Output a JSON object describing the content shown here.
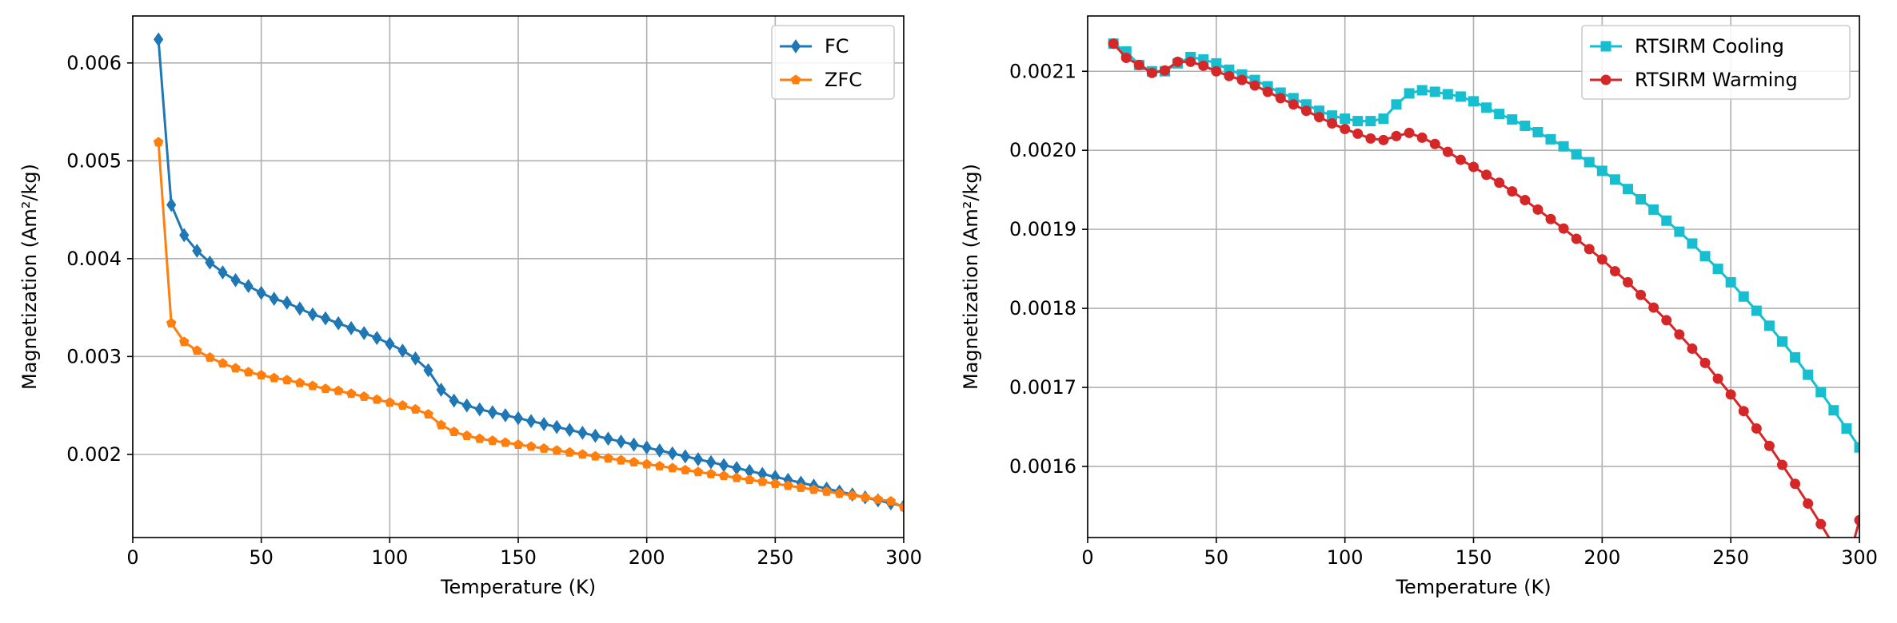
{
  "chart_data": [
    {
      "type": "line",
      "title": "",
      "xlabel": "Temperature (K)",
      "ylabel": "Magnetization (Am²/kg)",
      "xlim": [
        0,
        300
      ],
      "ylim": [
        0.00115,
        0.00648
      ],
      "xticks": [
        "0",
        "50",
        "100",
        "150",
        "200",
        "250",
        "300"
      ],
      "xtick_values": [
        0,
        50,
        100,
        150,
        200,
        250,
        300
      ],
      "yticks": [
        "0.002",
        "0.003",
        "0.004",
        "0.005",
        "0.006"
      ],
      "ytick_values": [
        0.002,
        0.003,
        0.004,
        0.005,
        0.006
      ],
      "grid": true,
      "legend": "top-right",
      "series": [
        {
          "name": "FC",
          "color": "#1f77b4",
          "marker": "diamond",
          "x": [
            10,
            15,
            20,
            25,
            30,
            35,
            40,
            45,
            50,
            55,
            60,
            65,
            70,
            75,
            80,
            85,
            90,
            95,
            100,
            105,
            110,
            115,
            120,
            125,
            130,
            135,
            140,
            145,
            150,
            155,
            160,
            165,
            170,
            175,
            180,
            185,
            190,
            195,
            200,
            205,
            210,
            215,
            220,
            225,
            230,
            235,
            240,
            245,
            250,
            255,
            260,
            265,
            270,
            275,
            280,
            285,
            290,
            295,
            300
          ],
          "y": [
            0.00624,
            0.00455,
            0.00424,
            0.00408,
            0.00396,
            0.00386,
            0.00378,
            0.00372,
            0.00365,
            0.00359,
            0.00355,
            0.00349,
            0.00343,
            0.00339,
            0.00334,
            0.00329,
            0.00324,
            0.00319,
            0.00313,
            0.00306,
            0.00298,
            0.00286,
            0.00266,
            0.00255,
            0.0025,
            0.00246,
            0.00243,
            0.0024,
            0.00237,
            0.00234,
            0.00231,
            0.00228,
            0.00225,
            0.00222,
            0.00219,
            0.00216,
            0.00213,
            0.0021,
            0.00207,
            0.00204,
            0.00201,
            0.00198,
            0.00195,
            0.00192,
            0.00189,
            0.00186,
            0.00183,
            0.0018,
            0.00177,
            0.00174,
            0.00171,
            0.00168,
            0.00165,
            0.00162,
            0.00159,
            0.00156,
            0.00153,
            0.0015,
            0.00147
          ]
        },
        {
          "name": "ZFC",
          "color": "#ff7f0e",
          "marker": "pentagon",
          "x": [
            10,
            15,
            20,
            25,
            30,
            35,
            40,
            45,
            50,
            55,
            60,
            65,
            70,
            75,
            80,
            85,
            90,
            95,
            100,
            105,
            110,
            115,
            120,
            125,
            130,
            135,
            140,
            145,
            150,
            155,
            160,
            165,
            170,
            175,
            180,
            185,
            190,
            195,
            200,
            205,
            210,
            215,
            220,
            225,
            230,
            235,
            240,
            245,
            250,
            255,
            260,
            265,
            270,
            275,
            280,
            285,
            290,
            295,
            300
          ],
          "y": [
            0.00519,
            0.00334,
            0.00315,
            0.00306,
            0.00299,
            0.00293,
            0.00288,
            0.00284,
            0.00281,
            0.00278,
            0.00276,
            0.00273,
            0.0027,
            0.00267,
            0.00265,
            0.00262,
            0.00259,
            0.00256,
            0.00253,
            0.0025,
            0.00246,
            0.00241,
            0.0023,
            0.00223,
            0.00219,
            0.00216,
            0.00214,
            0.00212,
            0.0021,
            0.00208,
            0.00206,
            0.00204,
            0.00202,
            0.002,
            0.00198,
            0.00196,
            0.00194,
            0.00192,
            0.0019,
            0.00188,
            0.00186,
            0.00184,
            0.00182,
            0.0018,
            0.00178,
            0.00176,
            0.00174,
            0.00172,
            0.0017,
            0.00168,
            0.00166,
            0.00164,
            0.00162,
            0.0016,
            0.00158,
            0.00156,
            0.00154,
            0.00152,
            0.00146
          ]
        }
      ]
    },
    {
      "type": "line",
      "title": "",
      "xlabel": "Temperature (K)",
      "ylabel": "Magnetization (Am²/kg)",
      "xlim": [
        0,
        300
      ],
      "ylim": [
        0.00151,
        0.00217
      ],
      "xticks": [
        "0",
        "50",
        "100",
        "150",
        "200",
        "250",
        "300"
      ],
      "xtick_values": [
        0,
        50,
        100,
        150,
        200,
        250,
        300
      ],
      "yticks": [
        "0.0016",
        "0.0017",
        "0.0018",
        "0.0019",
        "0.0020",
        "0.0021"
      ],
      "ytick_values": [
        0.0016,
        0.0017,
        0.0018,
        0.0019,
        0.002,
        0.0021
      ],
      "grid": true,
      "legend": "top-right",
      "series": [
        {
          "name": "RTSIRM Cooling",
          "color": "#17becf",
          "marker": "square",
          "x": [
            10,
            15,
            20,
            25,
            30,
            35,
            40,
            45,
            50,
            55,
            60,
            65,
            70,
            75,
            80,
            85,
            90,
            95,
            100,
            105,
            110,
            115,
            120,
            125,
            130,
            135,
            140,
            145,
            150,
            155,
            160,
            165,
            170,
            175,
            180,
            185,
            190,
            195,
            200,
            205,
            210,
            215,
            220,
            225,
            230,
            235,
            240,
            245,
            250,
            255,
            260,
            265,
            270,
            275,
            280,
            285,
            290,
            295,
            300
          ],
          "y": [
            0.002135,
            0.002125,
            0.002108,
            0.0021,
            0.0021,
            0.00211,
            0.002118,
            0.002115,
            0.00211,
            0.002102,
            0.002096,
            0.002089,
            0.002081,
            0.002073,
            0.002066,
            0.002058,
            0.00205,
            0.002044,
            0.00204,
            0.002037,
            0.002037,
            0.00204,
            0.002058,
            0.002072,
            0.002076,
            0.002074,
            0.002071,
            0.002068,
            0.002062,
            0.002054,
            0.002046,
            0.002039,
            0.002031,
            0.002023,
            0.002014,
            0.002005,
            0.001995,
            0.001985,
            0.001974,
            0.001963,
            0.001951,
            0.001938,
            0.001925,
            0.001911,
            0.001897,
            0.001882,
            0.001866,
            0.00185,
            0.001833,
            0.001815,
            0.001797,
            0.001778,
            0.001758,
            0.001738,
            0.001716,
            0.001694,
            0.001671,
            0.001648,
            0.001624
          ]
        },
        {
          "name": "RTSIRM Warming",
          "color": "#d62728",
          "marker": "circle",
          "x": [
            10,
            15,
            20,
            25,
            30,
            35,
            40,
            45,
            50,
            55,
            60,
            65,
            70,
            75,
            80,
            85,
            90,
            95,
            100,
            105,
            110,
            115,
            120,
            125,
            130,
            135,
            140,
            145,
            150,
            155,
            160,
            165,
            170,
            175,
            180,
            185,
            190,
            195,
            200,
            205,
            210,
            215,
            220,
            225,
            230,
            235,
            240,
            245,
            250,
            255,
            260,
            265,
            270,
            275,
            280,
            285,
            290,
            295,
            300
          ],
          "y": [
            0.002135,
            0.002117,
            0.002108,
            0.002098,
            0.002101,
            0.002112,
            0.002112,
            0.002107,
            0.0021,
            0.002094,
            0.002089,
            0.002082,
            0.002074,
            0.002066,
            0.002058,
            0.00205,
            0.002042,
            0.002034,
            0.002027,
            0.002021,
            0.002015,
            0.002013,
            0.002018,
            0.002022,
            0.002016,
            0.002008,
            0.001998,
            0.001988,
            0.001979,
            0.001969,
            0.001959,
            0.001948,
            0.001937,
            0.001925,
            0.001913,
            0.001901,
            0.001888,
            0.001875,
            0.001862,
            0.001847,
            0.001833,
            0.001817,
            0.001801,
            0.001785,
            0.001767,
            0.001749,
            0.001731,
            0.001711,
            0.001691,
            0.00167,
            0.001648,
            0.001626,
            0.001602,
            0.001578,
            0.001553,
            0.001527,
            0.0015,
            0.001471,
            0.001532
          ]
        }
      ]
    }
  ]
}
